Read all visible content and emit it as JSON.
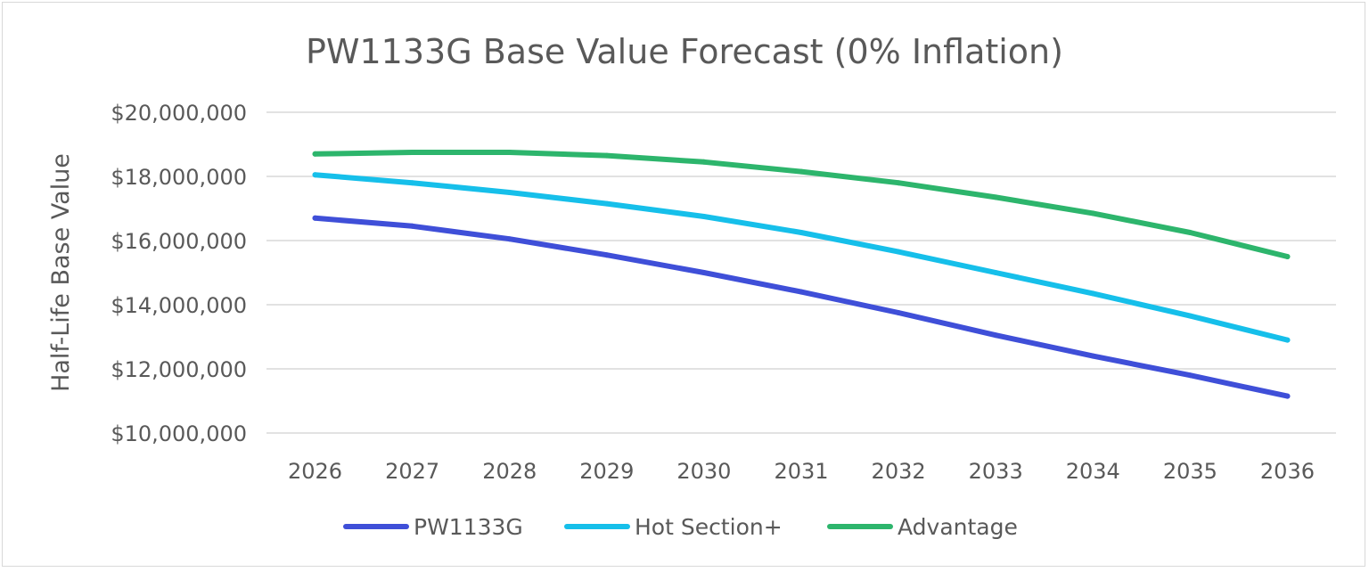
{
  "chart_data": {
    "type": "line",
    "title": "PW1133G Base Value Forecast (0% Inflation)",
    "xlabel": "",
    "ylabel": "Half-Life Base Value",
    "categories": [
      "2026",
      "2027",
      "2028",
      "2029",
      "2030",
      "2031",
      "2032",
      "2033",
      "2034",
      "2035",
      "2036"
    ],
    "ylim": [
      10000000,
      20000000
    ],
    "yticks": [
      20000000,
      18000000,
      16000000,
      14000000,
      12000000,
      10000000
    ],
    "ytick_labels": [
      "$20,000,000",
      "$18,000,000",
      "$16,000,000",
      "$14,000,000",
      "$12,000,000",
      "$10,000,000"
    ],
    "grid": true,
    "legend_position": "bottom",
    "series": [
      {
        "name": "PW1133G",
        "color": "#3f4fd8",
        "values": [
          16700000,
          16450000,
          16050000,
          15550000,
          15000000,
          14400000,
          13750000,
          13050000,
          12400000,
          11800000,
          11150000
        ]
      },
      {
        "name": "Hot Section+",
        "color": "#16bfea",
        "values": [
          18050000,
          17800000,
          17500000,
          17150000,
          16750000,
          16250000,
          15650000,
          15000000,
          14350000,
          13650000,
          12900000
        ]
      },
      {
        "name": "Advantage",
        "color": "#2db56c",
        "values": [
          18700000,
          18750000,
          18750000,
          18650000,
          18450000,
          18150000,
          17800000,
          17350000,
          16850000,
          16250000,
          15500000
        ]
      }
    ]
  }
}
